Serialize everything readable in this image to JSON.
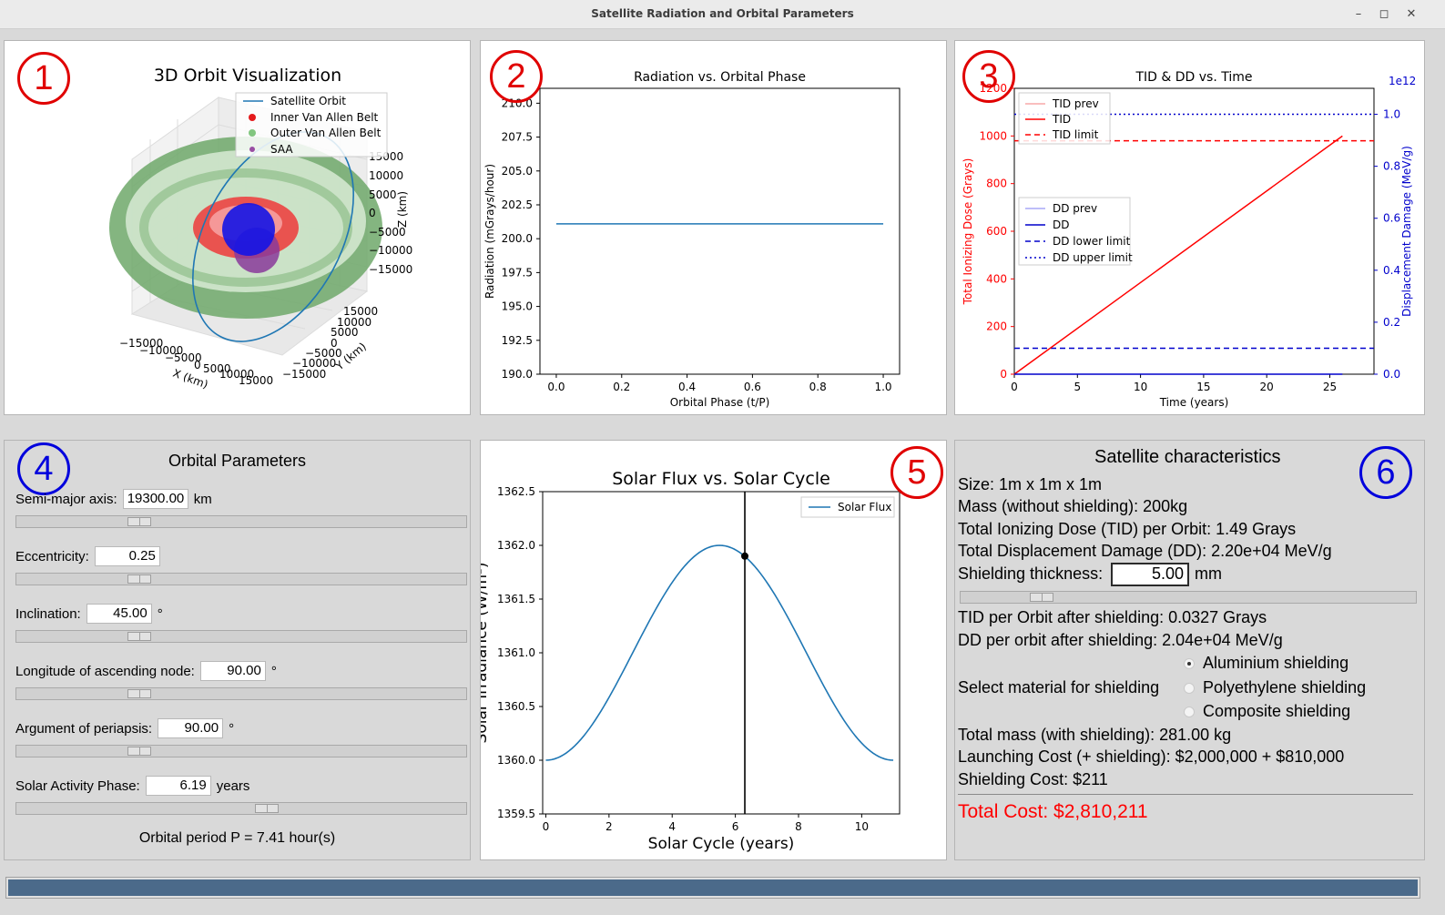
{
  "window": {
    "title": "Satellite Radiation and Orbital Parameters",
    "minimize": "–",
    "maximize": "◻",
    "close": "✕"
  },
  "markers": {
    "p1": "1",
    "p2": "2",
    "p3": "3",
    "p4": "4",
    "p5": "5",
    "p6": "6"
  },
  "plot_orbit": {
    "title": "3D Orbit Visualization",
    "legend": [
      "Satellite Orbit",
      "Inner Van Allen Belt",
      "Outer Van Allen Belt",
      "SAA"
    ],
    "z_ticks": [
      "15000",
      "10000",
      "5000",
      "0",
      "−5000",
      "−10000",
      "−15000"
    ],
    "zlabel": "Z (km)",
    "y_ticks": [
      "15000",
      "10000",
      "5000",
      "0",
      "−5000",
      "−10000",
      "−15000"
    ],
    "ylabel": "Y (km)",
    "x_ticks": [
      "−15000",
      "−10000",
      "−5000",
      "0",
      "5000",
      "10000",
      "15000"
    ],
    "xlabel": "X (km)",
    "colors": {
      "orbit": "#1f77b4",
      "inner": "#e41a1c",
      "outer": "#4daf4a",
      "saa": "#984ea3",
      "earth": "#1010ee"
    }
  },
  "chart_data": [
    {
      "type": "line",
      "title": "Radiation vs. Orbital Phase",
      "xlabel": "Orbital Phase (t/P)",
      "ylabel": "Radiation (mGrays/hour)",
      "xlim": [
        -0.05,
        1.05
      ],
      "ylim": [
        190.0,
        211.1
      ],
      "x_ticks": [
        "0.0",
        "0.2",
        "0.4",
        "0.6",
        "0.8",
        "1.0"
      ],
      "y_ticks": [
        "190.0",
        "192.5",
        "195.0",
        "197.5",
        "200.0",
        "202.5",
        "205.0",
        "207.5",
        "210.0"
      ],
      "series": [
        {
          "x": [
            0.0,
            1.0
          ],
          "y": [
            201.1,
            201.1
          ],
          "color": "#1f77b4"
        }
      ]
    },
    {
      "type": "line",
      "title": "TID & DD vs. Time",
      "xlabel": "Time (years)",
      "ylabel": "Total Ionizing Dose (Grays)",
      "ylabel_right": "Displacement Damage (MeV/g)",
      "right_axis_offset": "1e12",
      "xlim": [
        0,
        28.5
      ],
      "ylim": [
        0,
        1200
      ],
      "ylim_right": [
        0,
        1.1
      ],
      "x_ticks": [
        "0",
        "5",
        "10",
        "15",
        "20",
        "25"
      ],
      "y_ticks": [
        "0",
        "200",
        "400",
        "600",
        "800",
        "1000",
        "1200"
      ],
      "y_ticks_right": [
        "0.0",
        "0.2",
        "0.4",
        "0.6",
        "0.8",
        "1.0"
      ],
      "legend_tid": [
        "TID prev",
        "TID",
        "TID limit"
      ],
      "legend_dd": [
        "DD prev",
        "DD",
        "DD lower limit",
        "DD upper limit"
      ],
      "series": [
        {
          "name": "TID",
          "x": [
            0,
            26
          ],
          "y": [
            0,
            1000
          ],
          "color": "#ff0000"
        },
        {
          "name": "TID limit",
          "y": 980,
          "color": "#ff0000",
          "style": "dashed"
        },
        {
          "name": "DD",
          "x": [
            0,
            26
          ],
          "y": [
            0,
            0.0
          ],
          "color": "#0000cc"
        },
        {
          "name": "DD lower limit",
          "y": 0.1,
          "color": "#0000cc",
          "style": "dashed"
        },
        {
          "name": "DD upper limit",
          "y": 1.0,
          "color": "#0000cc",
          "style": "dotted"
        }
      ]
    },
    {
      "type": "line",
      "title": "Solar Flux vs. Solar Cycle",
      "xlabel": "Solar Cycle (years)",
      "ylabel": "Solar Irradiance (W/m²)",
      "xlim": [
        -0.1,
        11.2
      ],
      "ylim": [
        1359.5,
        1362.5
      ],
      "x_ticks": [
        "0",
        "2",
        "4",
        "6",
        "8",
        "10"
      ],
      "y_ticks": [
        "1359.5",
        "1360.0",
        "1360.5",
        "1361.0",
        "1361.5",
        "1362.0",
        "1362.5"
      ],
      "legend": [
        "Solar Flux"
      ],
      "series": [
        {
          "name": "Solar Flux",
          "baseline": 1360.0,
          "amplitude": 2.0,
          "period": 11.0,
          "color": "#1f77b4"
        }
      ],
      "current_phase": 6.3,
      "current_value": 1361.9
    }
  ],
  "orbital": {
    "title": "Orbital Parameters",
    "params": [
      {
        "label": "Semi-major axis:",
        "value": "19300.00",
        "unit": "km",
        "fraction": 0.26
      },
      {
        "label": "Eccentricity:",
        "value": "0.25",
        "unit": "",
        "fraction": 0.26
      },
      {
        "label": "Inclination:",
        "value": "45.00",
        "unit": "°",
        "fraction": 0.26
      },
      {
        "label": "Longitude of ascending node:",
        "value": "90.00",
        "unit": "°",
        "fraction": 0.26
      },
      {
        "label": "Argument of periapsis:",
        "value": "90.00",
        "unit": "°",
        "fraction": 0.26
      },
      {
        "label": "Solar Activity Phase:",
        "value": "6.19",
        "unit": "years",
        "fraction": 0.56
      }
    ],
    "period": "Orbital period P = 7.41 hour(s)"
  },
  "satellite": {
    "title": "Satellite characteristics",
    "size": "Size: 1m x 1m x 1m",
    "mass": "Mass (without shielding): 200kg",
    "tid": "Total Ionizing Dose (TID) per Orbit: 1.49 Grays",
    "dd": "Total Displacement Damage (DD): 2.20e+04 MeV/g",
    "shield_label": "Shielding thickness:",
    "shield_value": "5.00",
    "shield_unit": "mm",
    "shield_fraction": 0.16,
    "tid_after": "TID per Orbit after shielding: 0.0327 Grays",
    "dd_after": "DD per orbit after shielding: 2.04e+04 MeV/g",
    "material_label": "Select material for shielding",
    "materials": [
      "Aluminium shielding",
      "Polyethylene shielding",
      "Composite shielding"
    ],
    "selected_material": "Aluminium shielding",
    "total_mass": "Total mass (with shielding): 281.00 kg",
    "launch_cost": "Launching Cost (+ shielding): $2,000,000 + $810,000",
    "shield_cost": "Shielding Cost: $211",
    "total_cost": "Total Cost: $2,810,211"
  },
  "progress": {
    "fraction": 1.0
  }
}
